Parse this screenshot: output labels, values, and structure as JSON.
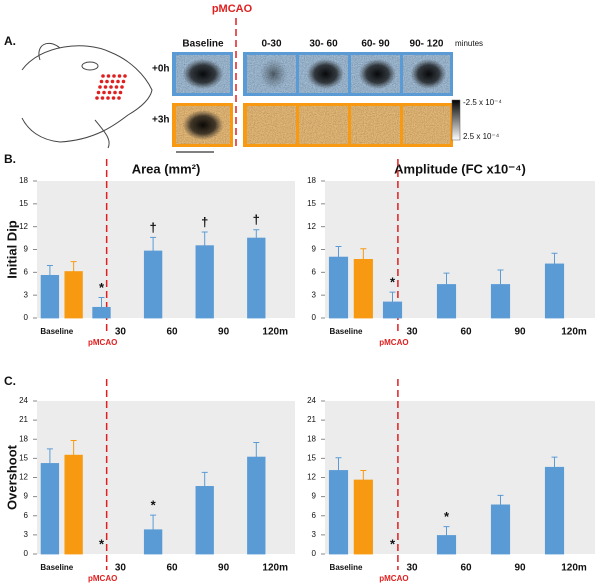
{
  "panel_a": {
    "label": "A.",
    "marker_label": "pMCAO",
    "columns": [
      "Baseline",
      "0-30",
      "30- 60",
      "60- 90",
      "90- 120"
    ],
    "unit": "minutes",
    "rows": [
      "+0h",
      "+3h"
    ],
    "colorbar": [
      "-2.5 x 10⁻⁴",
      "2.5 x 10⁻⁴"
    ]
  },
  "panel_labels": [
    "B.",
    "C."
  ],
  "chart_data": [
    {
      "type": "bar",
      "title": "Area (mm²)",
      "ylabel": "Initial Dip",
      "categories": [
        "Baseline",
        "30",
        "60",
        "90",
        "120m"
      ],
      "marker_label": "pMCAO",
      "ylim": [
        0,
        18
      ],
      "yticks": [
        0,
        3,
        6,
        9,
        12,
        15,
        18
      ],
      "series": [
        {
          "color": "#5b9bd5",
          "values": [
            5.6,
            1.4,
            8.8,
            9.5,
            10.5
          ],
          "errors": [
            1.3,
            1.3,
            1.8,
            1.8,
            1.1
          ]
        },
        {
          "color": "#f79a12",
          "values": [
            6.1,
            0,
            0,
            0,
            0
          ],
          "errors": [
            1.3,
            0,
            0,
            0,
            0
          ]
        }
      ],
      "annotations": [
        {
          "text": "*",
          "x": "30"
        },
        {
          "text": "†",
          "x": "60"
        },
        {
          "text": "†",
          "x": "90"
        },
        {
          "text": "†",
          "x": "120m"
        }
      ]
    },
    {
      "type": "bar",
      "title": "Amplitude (FC x10⁻⁴)",
      "categories": [
        "Baseline",
        "30",
        "60",
        "90",
        "120m"
      ],
      "marker_label": "pMCAO",
      "ylim": [
        0,
        18
      ],
      "yticks": [
        0,
        3,
        6,
        9,
        12,
        15,
        18
      ],
      "series": [
        {
          "color": "#5b9bd5",
          "values": [
            8.0,
            2.1,
            4.4,
            4.4,
            7.1
          ],
          "errors": [
            1.4,
            1.3,
            1.5,
            1.9,
            1.4
          ]
        },
        {
          "color": "#f79a12",
          "values": [
            7.7,
            0,
            0,
            0,
            0
          ],
          "errors": [
            1.4,
            0,
            0,
            0,
            0
          ]
        }
      ],
      "annotations": [
        {
          "text": "*",
          "x": "30"
        }
      ]
    },
    {
      "type": "bar",
      "ylabel": "Overshoot",
      "categories": [
        "Baseline",
        "30",
        "60",
        "90",
        "120m"
      ],
      "marker_label": "pMCAO",
      "ylim": [
        0,
        24
      ],
      "yticks": [
        0,
        3,
        6,
        9,
        12,
        15,
        18,
        21,
        24
      ],
      "series": [
        {
          "color": "#5b9bd5",
          "values": [
            14.2,
            0,
            3.8,
            10.6,
            15.2
          ],
          "errors": [
            2.3,
            0,
            2.3,
            2.2,
            2.3
          ]
        },
        {
          "color": "#f79a12",
          "values": [
            15.5,
            0,
            0,
            0,
            0
          ],
          "errors": [
            2.3,
            0,
            0,
            0,
            0
          ]
        }
      ],
      "annotations": [
        {
          "text": "*",
          "x": "30"
        },
        {
          "text": "*",
          "x": "60"
        }
      ]
    },
    {
      "type": "bar",
      "categories": [
        "Baseline",
        "30",
        "60",
        "90",
        "120m"
      ],
      "marker_label": "pMCAO",
      "ylim": [
        0,
        24
      ],
      "yticks": [
        0,
        3,
        6,
        9,
        12,
        15,
        18,
        21,
        24
      ],
      "series": [
        {
          "color": "#5b9bd5",
          "values": [
            13.1,
            0,
            2.9,
            7.7,
            13.6
          ],
          "errors": [
            2.0,
            0,
            1.4,
            1.5,
            1.6
          ]
        },
        {
          "color": "#f79a12",
          "values": [
            11.6,
            0,
            0,
            0,
            0
          ],
          "errors": [
            1.5,
            0,
            0,
            0,
            0
          ]
        }
      ],
      "annotations": [
        {
          "text": "*",
          "x": "30"
        },
        {
          "text": "*",
          "x": "60"
        }
      ]
    }
  ]
}
